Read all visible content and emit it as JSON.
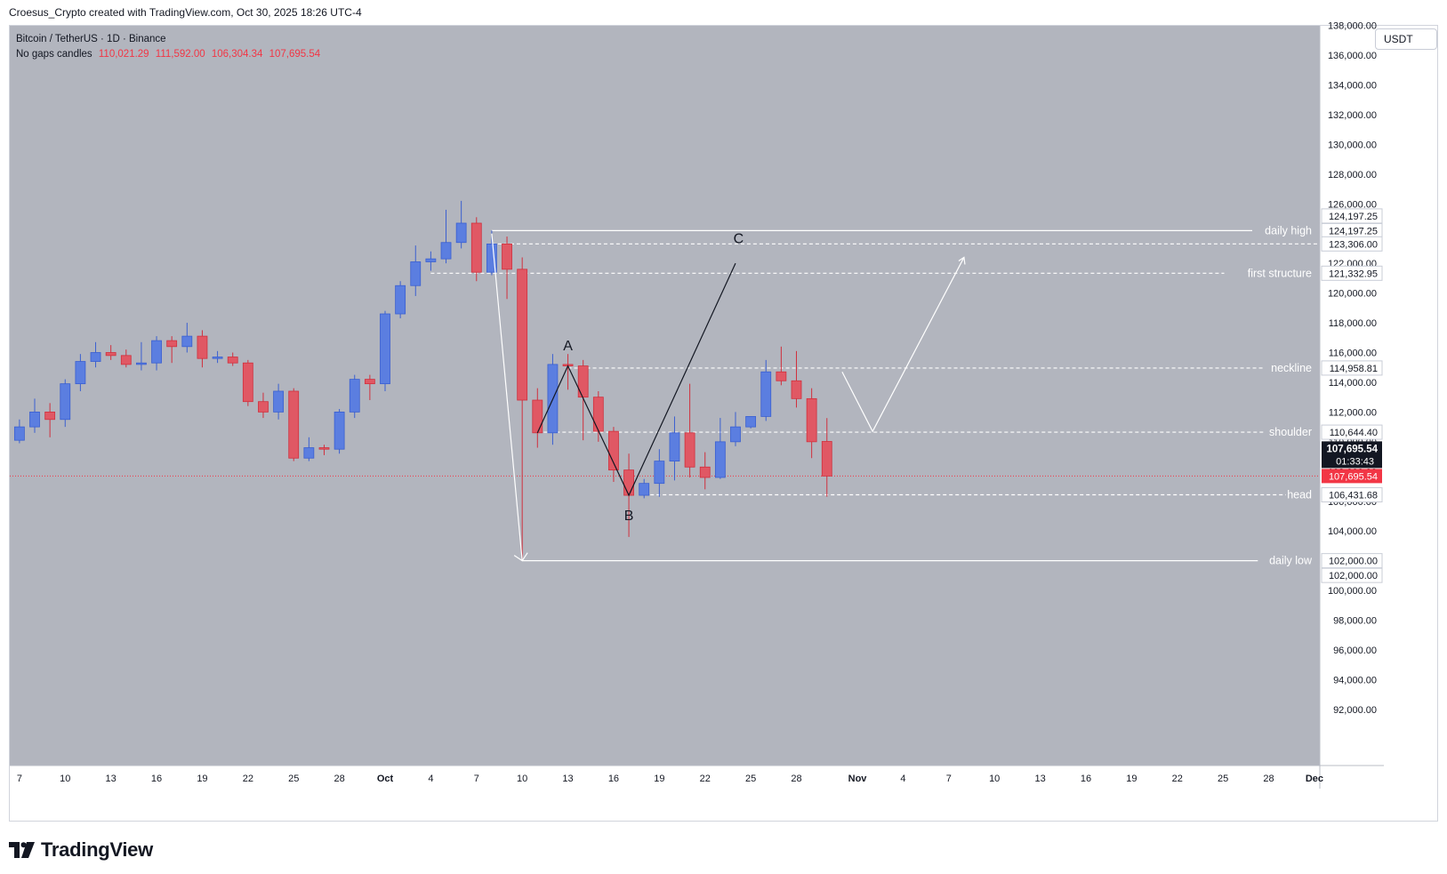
{
  "header": {
    "attribution": "Croesus_Crypto created with TradingView.com, Oct 30, 2025 18:26 UTC-4"
  },
  "legend": {
    "symbol": "Bitcoin / TetherUS · 1D · Binance",
    "style": "No gaps candles",
    "open": "110,021.29",
    "high": "111,592.00",
    "low": "106,304.34",
    "close": "107,695.54"
  },
  "currency_button": "USDT",
  "footer": {
    "logo_text": "TradingView"
  },
  "colors": {
    "background": "#b2b5be",
    "bull": "#5b7ee0",
    "bear": "#e05864",
    "wick_bull": "#3a5fd0",
    "wick_bear": "#d0303d",
    "annotation_white": "#ffffff",
    "current_price": "#f23645"
  },
  "chart_data": {
    "type": "candlestick",
    "symbol": "BTCUSDT",
    "timeframe": "1D",
    "ylim": [
      90000,
      138500
    ],
    "yticks": [
      "92,000.00",
      "94,000.00",
      "96,000.00",
      "98,000.00",
      "100,000.00",
      "102,000.00",
      "104,000.00",
      "106,000.00",
      "108,000.00",
      "110,000.00",
      "112,000.00",
      "114,000.00",
      "116,000.00",
      "118,000.00",
      "120,000.00",
      "122,000.00",
      "124,000.00",
      "126,000.00",
      "128,000.00",
      "130,000.00",
      "132,000.00",
      "134,000.00",
      "136,000.00",
      "138,000.00"
    ],
    "xticks": [
      {
        "label": "7",
        "day": -24
      },
      {
        "label": "10",
        "day": -21
      },
      {
        "label": "13",
        "day": -18
      },
      {
        "label": "16",
        "day": -15
      },
      {
        "label": "19",
        "day": -12
      },
      {
        "label": "22",
        "day": -9
      },
      {
        "label": "25",
        "day": -6
      },
      {
        "label": "28",
        "day": -3
      },
      {
        "label": "Oct",
        "day": 0
      },
      {
        "label": "4",
        "day": 3
      },
      {
        "label": "7",
        "day": 6
      },
      {
        "label": "10",
        "day": 9
      },
      {
        "label": "13",
        "day": 12
      },
      {
        "label": "16",
        "day": 15
      },
      {
        "label": "19",
        "day": 18
      },
      {
        "label": "22",
        "day": 21
      },
      {
        "label": "25",
        "day": 24
      },
      {
        "label": "28",
        "day": 27
      },
      {
        "label": "Nov",
        "day": 31
      },
      {
        "label": "4",
        "day": 34
      },
      {
        "label": "7",
        "day": 37
      },
      {
        "label": "10",
        "day": 40
      },
      {
        "label": "13",
        "day": 43
      },
      {
        "label": "16",
        "day": 46
      },
      {
        "label": "19",
        "day": 49
      },
      {
        "label": "22",
        "day": 52
      },
      {
        "label": "25",
        "day": 55
      },
      {
        "label": "28",
        "day": 58
      },
      {
        "label": "Dec",
        "day": 61
      }
    ],
    "candles": [
      {
        "day": -24,
        "o": 110100,
        "h": 111500,
        "l": 109900,
        "c": 111000
      },
      {
        "day": -23,
        "o": 111000,
        "h": 112900,
        "l": 110600,
        "c": 112000
      },
      {
        "day": -22,
        "o": 112000,
        "h": 112600,
        "l": 110300,
        "c": 111500
      },
      {
        "day": -21,
        "o": 111500,
        "h": 114200,
        "l": 111000,
        "c": 113900
      },
      {
        "day": -20,
        "o": 113900,
        "h": 115900,
        "l": 113400,
        "c": 115400
      },
      {
        "day": -19,
        "o": 115400,
        "h": 116700,
        "l": 115000,
        "c": 116000
      },
      {
        "day": -18,
        "o": 116000,
        "h": 116500,
        "l": 115500,
        "c": 115800
      },
      {
        "day": -17,
        "o": 115800,
        "h": 116200,
        "l": 115000,
        "c": 115200
      },
      {
        "day": -16,
        "o": 115200,
        "h": 116700,
        "l": 114800,
        "c": 115300
      },
      {
        "day": -15,
        "o": 115300,
        "h": 117100,
        "l": 114800,
        "c": 116800
      },
      {
        "day": -14,
        "o": 116800,
        "h": 117100,
        "l": 115300,
        "c": 116400
      },
      {
        "day": -13,
        "o": 116400,
        "h": 118000,
        "l": 116000,
        "c": 117100
      },
      {
        "day": -12,
        "o": 117100,
        "h": 117500,
        "l": 115000,
        "c": 115600
      },
      {
        "day": -11,
        "o": 115600,
        "h": 116100,
        "l": 115300,
        "c": 115700
      },
      {
        "day": -10,
        "o": 115700,
        "h": 116000,
        "l": 115100,
        "c": 115300
      },
      {
        "day": -9,
        "o": 115300,
        "h": 115500,
        "l": 112400,
        "c": 112700
      },
      {
        "day": -8,
        "o": 112700,
        "h": 113300,
        "l": 111600,
        "c": 112000
      },
      {
        "day": -7,
        "o": 112000,
        "h": 113900,
        "l": 111500,
        "c": 113400
      },
      {
        "day": -6,
        "o": 113400,
        "h": 113600,
        "l": 108700,
        "c": 108900
      },
      {
        "day": -5,
        "o": 108900,
        "h": 110300,
        "l": 108700,
        "c": 109600
      },
      {
        "day": -4,
        "o": 109600,
        "h": 109800,
        "l": 109100,
        "c": 109500
      },
      {
        "day": -3,
        "o": 109500,
        "h": 112200,
        "l": 109200,
        "c": 112000
      },
      {
        "day": -2,
        "o": 112000,
        "h": 114500,
        "l": 111600,
        "c": 114200
      },
      {
        "day": -1,
        "o": 114200,
        "h": 114500,
        "l": 112800,
        "c": 113900
      },
      {
        "day": 0,
        "o": 113900,
        "h": 118800,
        "l": 113400,
        "c": 118600
      },
      {
        "day": 1,
        "o": 118600,
        "h": 120800,
        "l": 118300,
        "c": 120500
      },
      {
        "day": 2,
        "o": 120500,
        "h": 123200,
        "l": 119800,
        "c": 122100
      },
      {
        "day": 3,
        "o": 122100,
        "h": 122800,
        "l": 121500,
        "c": 122300
      },
      {
        "day": 4,
        "o": 122300,
        "h": 125600,
        "l": 122000,
        "c": 123400
      },
      {
        "day": 5,
        "o": 123400,
        "h": 126200,
        "l": 123000,
        "c": 124700
      },
      {
        "day": 6,
        "o": 124700,
        "h": 125100,
        "l": 120800,
        "c": 121400
      },
      {
        "day": 7,
        "o": 121400,
        "h": 124200,
        "l": 121200,
        "c": 123300
      },
      {
        "day": 8,
        "o": 123300,
        "h": 123800,
        "l": 119600,
        "c": 121600
      },
      {
        "day": 9,
        "o": 121600,
        "h": 122400,
        "l": 102000,
        "c": 112800
      },
      {
        "day": 10,
        "o": 112800,
        "h": 113600,
        "l": 109600,
        "c": 110600
      },
      {
        "day": 11,
        "o": 110600,
        "h": 115900,
        "l": 109800,
        "c": 115200
      },
      {
        "day": 12,
        "o": 115200,
        "h": 115900,
        "l": 113500,
        "c": 115100
      },
      {
        "day": 13,
        "o": 115100,
        "h": 115500,
        "l": 110100,
        "c": 113000
      },
      {
        "day": 14,
        "o": 113000,
        "h": 113400,
        "l": 110000,
        "c": 110700
      },
      {
        "day": 15,
        "o": 110700,
        "h": 111000,
        "l": 107300,
        "c": 108100
      },
      {
        "day": 16,
        "o": 108100,
        "h": 109200,
        "l": 103600,
        "c": 106400
      },
      {
        "day": 17,
        "o": 106400,
        "h": 107500,
        "l": 106200,
        "c": 107200
      },
      {
        "day": 18,
        "o": 107200,
        "h": 109500,
        "l": 106300,
        "c": 108700
      },
      {
        "day": 19,
        "o": 108700,
        "h": 111700,
        "l": 107400,
        "c": 110600
      },
      {
        "day": 20,
        "o": 110600,
        "h": 113900,
        "l": 107600,
        "c": 108300
      },
      {
        "day": 21,
        "o": 108300,
        "h": 109300,
        "l": 106800,
        "c": 107600
      },
      {
        "day": 22,
        "o": 107600,
        "h": 111600,
        "l": 107500,
        "c": 110000
      },
      {
        "day": 23,
        "o": 110000,
        "h": 112000,
        "l": 109700,
        "c": 111000
      },
      {
        "day": 24,
        "o": 111000,
        "h": 111700,
        "l": 110900,
        "c": 111700
      },
      {
        "day": 25,
        "o": 111700,
        "h": 115500,
        "l": 111400,
        "c": 114700
      },
      {
        "day": 26,
        "o": 114700,
        "h": 116400,
        "l": 113800,
        "c": 114100
      },
      {
        "day": 27,
        "o": 114100,
        "h": 116100,
        "l": 112300,
        "c": 112900
      },
      {
        "day": 28,
        "o": 112900,
        "h": 113600,
        "l": 108900,
        "c": 110000
      },
      {
        "day": 29,
        "o": 110021.29,
        "h": 111592.0,
        "l": 106304.34,
        "c": 107695.54
      }
    ],
    "levels": [
      {
        "name": "daily high",
        "price": 124197.25,
        "start_day": 7,
        "style": "solid",
        "label_text": "daily high",
        "axis_text": "124,197.25"
      },
      {
        "name": "upper-dash",
        "price": 123306.0,
        "start_day": 7,
        "style": "dashed",
        "label_text": "",
        "axis_text": "123,306.00"
      },
      {
        "name": "first structure",
        "price": 121332.95,
        "start_day": 3,
        "style": "dashed",
        "label_text": "first structure",
        "axis_text": "121,332.95"
      },
      {
        "name": "neckline",
        "price": 114958.81,
        "start_day": 12,
        "style": "dashed",
        "label_text": "neckline",
        "axis_text": "114,958.81"
      },
      {
        "name": "shoulder",
        "price": 110644.4,
        "start_day": 10,
        "style": "dashed",
        "label_text": "shoulder",
        "axis_text": "110,644.40"
      },
      {
        "name": "head",
        "price": 106431.68,
        "start_day": 17,
        "style": "dashed",
        "label_text": "head",
        "axis_text": "106,431.68"
      },
      {
        "name": "daily low",
        "price": 102000.0,
        "start_day": 9,
        "style": "solid",
        "label_text": "daily low",
        "axis_text": "102,000.00"
      }
    ],
    "extra_axis_labels": [
      {
        "price": 124197.25,
        "text": "124,197.25",
        "offset": -1
      },
      {
        "price": 102000.0,
        "text": "102,000.00",
        "offset": 1
      }
    ],
    "current_price": {
      "price": 107695.54,
      "text": "107,695.54",
      "countdown": "01:33:43"
    },
    "abc_path": [
      {
        "label": "",
        "day": 10,
        "price": 110600
      },
      {
        "label": "A",
        "day": 12,
        "price": 115100
      },
      {
        "label": "B",
        "day": 16,
        "price": 106400
      },
      {
        "label": "C",
        "day": 23,
        "price": 122000
      }
    ],
    "abc_labels": [
      {
        "text": "A",
        "day": 12,
        "price": 116500
      },
      {
        "text": "B",
        "day": 16,
        "price": 105100
      },
      {
        "text": "C",
        "day": 23.2,
        "price": 123700
      }
    ],
    "drop_arrow": [
      {
        "day": 7,
        "price": 124000
      },
      {
        "day": 9,
        "price": 102000
      }
    ],
    "projection_path": [
      {
        "day": 30,
        "price": 114700
      },
      {
        "day": 32,
        "price": 110700
      },
      {
        "day": 38,
        "price": 122400
      }
    ]
  }
}
